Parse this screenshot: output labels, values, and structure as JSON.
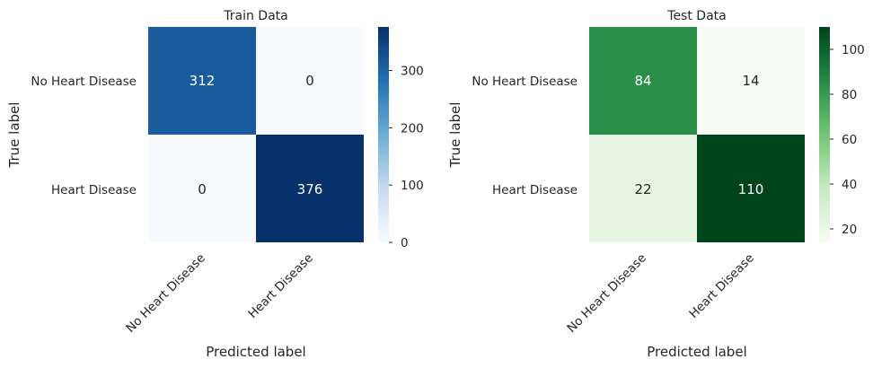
{
  "chart_data": [
    {
      "type": "heatmap",
      "title": "Train Data",
      "xlabel": "Predicted label",
      "ylabel": "True label",
      "x_categories": [
        "No Heart Disease",
        "Heart Disease"
      ],
      "y_categories": [
        "No Heart Disease",
        "Heart Disease"
      ],
      "values": [
        [
          312,
          0
        ],
        [
          0,
          376
        ]
      ],
      "colormap": "Blues",
      "colorbar": {
        "range": [
          0,
          376
        ],
        "ticks": [
          0,
          100,
          200,
          300
        ]
      },
      "grid": false
    },
    {
      "type": "heatmap",
      "title": "Test Data",
      "xlabel": "Predicted label",
      "ylabel": "True label",
      "x_categories": [
        "No Heart Disease",
        "Heart Disease"
      ],
      "y_categories": [
        "No Heart Disease",
        "Heart Disease"
      ],
      "values": [
        [
          84,
          14
        ],
        [
          22,
          110
        ]
      ],
      "colormap": "Greens",
      "colorbar": {
        "range": [
          14,
          110
        ],
        "ticks": [
          20,
          40,
          60,
          80,
          100
        ]
      },
      "grid": false
    }
  ]
}
